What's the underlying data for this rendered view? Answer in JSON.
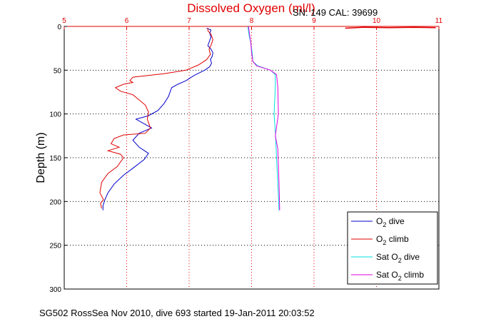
{
  "chart_data": {
    "type": "line",
    "title": "Dissolved Oxygen (ml/l)",
    "subtitle": "SN: 149  CAL: 39699",
    "ylabel": "Depth (m)",
    "footer": "SG502 RossSea Nov 2010, dive 693 started 19-Jan-2011 20:03:52",
    "xlim": [
      5,
      11
    ],
    "ylim": [
      0,
      300
    ],
    "y_inverted": true,
    "x_axis_position": "top",
    "x_ticks": [
      "5",
      "6",
      "7",
      "8",
      "9",
      "10",
      "11"
    ],
    "y_ticks": [
      "0",
      "50",
      "100",
      "150",
      "200",
      "250",
      "300"
    ],
    "grid": true,
    "legend_position": "bottom-right",
    "series": [
      {
        "label_main": "O",
        "label_sub": "2",
        "label_rest": " dive",
        "color": "#0000cc",
        "points": [
          [
            7.28,
            2
          ],
          [
            7.35,
            4
          ],
          [
            7.33,
            8
          ],
          [
            7.35,
            12
          ],
          [
            7.33,
            16
          ],
          [
            7.3,
            22
          ],
          [
            7.35,
            26
          ],
          [
            7.38,
            30
          ],
          [
            7.37,
            34
          ],
          [
            7.34,
            38
          ],
          [
            7.36,
            42
          ],
          [
            7.33,
            46
          ],
          [
            7.25,
            50
          ],
          [
            7.08,
            56
          ],
          [
            6.95,
            62
          ],
          [
            6.82,
            66
          ],
          [
            6.72,
            70
          ],
          [
            6.67,
            80
          ],
          [
            6.6,
            88
          ],
          [
            6.5,
            96
          ],
          [
            6.35,
            102
          ],
          [
            6.15,
            106
          ],
          [
            6.3,
            112
          ],
          [
            6.4,
            116
          ],
          [
            6.2,
            122
          ],
          [
            6.1,
            130
          ],
          [
            6.2,
            138
          ],
          [
            6.35,
            145
          ],
          [
            6.28,
            152
          ],
          [
            6.1,
            162
          ],
          [
            5.95,
            170
          ],
          [
            5.8,
            180
          ],
          [
            5.7,
            190
          ],
          [
            5.65,
            198
          ],
          [
            5.62,
            205
          ],
          [
            5.62,
            210
          ]
        ]
      },
      {
        "label_main": "O",
        "label_sub": "2",
        "label_rest": " climb",
        "color": "#e00000",
        "points": [
          [
            7.3,
            2
          ],
          [
            7.3,
            5
          ],
          [
            7.35,
            9
          ],
          [
            7.38,
            15
          ],
          [
            7.36,
            20
          ],
          [
            7.32,
            26
          ],
          [
            7.34,
            32
          ],
          [
            7.28,
            38
          ],
          [
            7.15,
            44
          ],
          [
            6.95,
            50
          ],
          [
            6.6,
            54
          ],
          [
            6.1,
            58
          ],
          [
            6.05,
            62
          ],
          [
            6.1,
            64
          ],
          [
            5.95,
            66
          ],
          [
            5.82,
            70
          ],
          [
            5.9,
            74
          ],
          [
            6.1,
            78
          ],
          [
            6.2,
            84
          ],
          [
            6.3,
            90
          ],
          [
            6.35,
            98
          ],
          [
            6.33,
            106
          ],
          [
            6.38,
            116
          ],
          [
            6.3,
            122
          ],
          [
            5.95,
            124
          ],
          [
            5.8,
            128
          ],
          [
            5.75,
            134
          ],
          [
            5.88,
            138
          ],
          [
            5.7,
            142
          ],
          [
            5.9,
            146
          ],
          [
            5.95,
            150
          ],
          [
            5.85,
            160
          ],
          [
            5.7,
            168
          ],
          [
            5.6,
            178
          ],
          [
            5.57,
            190
          ],
          [
            5.63,
            198
          ],
          [
            5.58,
            202
          ],
          [
            5.6,
            208
          ]
        ]
      },
      {
        "label_main": "Sat O",
        "label_sub": "2",
        "label_rest": " dive",
        "color": "#00e0e0",
        "points": [
          [
            7.94,
            0
          ],
          [
            7.96,
            10
          ],
          [
            7.99,
            20
          ],
          [
            8.01,
            30
          ],
          [
            8.02,
            40
          ],
          [
            8.1,
            45
          ],
          [
            8.3,
            50
          ],
          [
            8.38,
            55
          ],
          [
            8.38,
            70
          ],
          [
            8.36,
            100
          ],
          [
            8.38,
            120
          ],
          [
            8.4,
            150
          ],
          [
            8.42,
            180
          ],
          [
            8.44,
            210
          ]
        ]
      },
      {
        "label_main": "Sat O",
        "label_sub": "2",
        "label_rest": " climb",
        "color": "#e000e0",
        "points": [
          [
            7.95,
            0
          ],
          [
            7.97,
            10
          ],
          [
            7.99,
            20
          ],
          [
            8.0,
            30
          ],
          [
            8.02,
            40
          ],
          [
            8.08,
            45
          ],
          [
            8.3,
            50
          ],
          [
            8.4,
            55
          ],
          [
            8.42,
            70
          ],
          [
            8.43,
            100
          ],
          [
            8.4,
            115
          ],
          [
            8.38,
            125
          ],
          [
            8.42,
            140
          ],
          [
            8.44,
            180
          ],
          [
            8.45,
            210
          ]
        ]
      }
    ],
    "spike": {
      "color": "#e00000",
      "points": [
        [
          9.5,
          2
        ],
        [
          9.8,
          1
        ],
        [
          10.2,
          1.5
        ],
        [
          10.6,
          1
        ],
        [
          10.95,
          1.5
        ]
      ]
    }
  }
}
